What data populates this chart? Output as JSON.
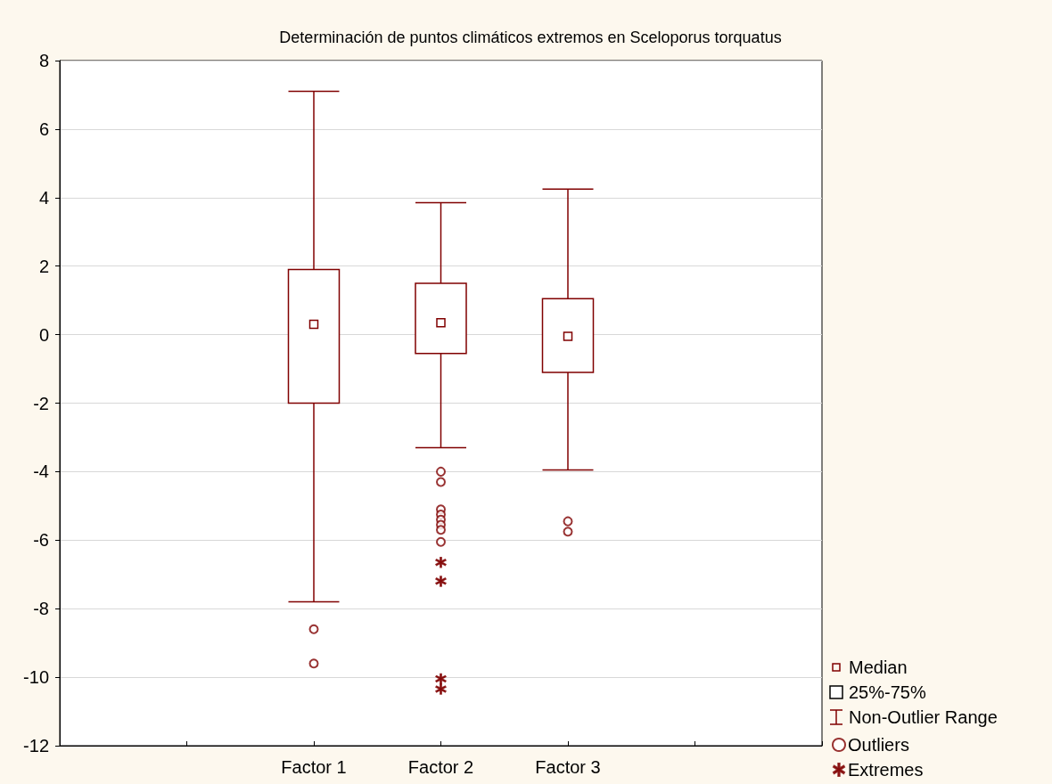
{
  "chart_data": {
    "type": "box",
    "title": "Determinación de puntos climáticos extremos en Sceloporus torquatus",
    "categories": [
      null,
      null,
      "Factor 1",
      "Factor 2",
      "Factor 3",
      null,
      null
    ],
    "color": "#800000",
    "boxes": [
      null,
      null,
      {
        "low": -7.8,
        "q1": -2.0,
        "median": 0.3,
        "q3": 1.9,
        "high": 7.1
      },
      {
        "low": -3.3,
        "q1": -0.55,
        "median": 0.35,
        "q3": 1.5,
        "high": 3.85
      },
      {
        "low": -3.95,
        "q1": -1.1,
        "median": -0.05,
        "q3": 1.05,
        "high": 4.25
      },
      null,
      null
    ],
    "series": [
      {
        "name": "Outliers",
        "type": "scatter",
        "marker": "circle",
        "color": "#800000",
        "x": [
          "Factor 1",
          "Factor 1",
          "Factor 2",
          "Factor 2",
          "Factor 2",
          "Factor 2",
          "Factor 2",
          "Factor 2",
          "Factor 2",
          "Factor 2",
          "Factor 3",
          "Factor 3"
        ],
        "values": [
          -8.6,
          -9.6,
          -4.0,
          -4.3,
          -5.1,
          -5.25,
          -5.4,
          -5.55,
          -5.7,
          -6.05,
          -5.45,
          -5.75
        ]
      },
      {
        "name": "Extremes",
        "type": "scatter",
        "marker": "star",
        "color": "#800000",
        "x": [
          "Factor 2",
          "Factor 2",
          "Factor 2",
          "Factor 2"
        ],
        "values": [
          -6.65,
          -7.2,
          -10.05,
          -10.35
        ]
      }
    ],
    "annotations": [
      "Median",
      "25%-75%",
      "Non-Outlier Range"
    ],
    "ylim": [
      -12,
      8
    ],
    "yticks": [
      -12,
      -10,
      -8,
      -6,
      -4,
      -2,
      0,
      2,
      4,
      6,
      8
    ],
    "grid": "y",
    "legend": "bottom right"
  }
}
